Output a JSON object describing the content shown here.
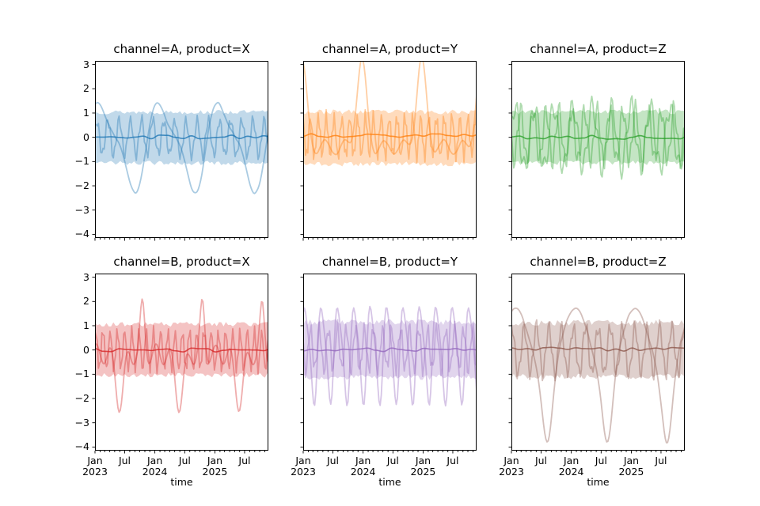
{
  "figure": {
    "kind": "faceted-line-chart",
    "background": "#ffffff"
  },
  "chart_data": {
    "type": "line",
    "facet_grid": {
      "rows": 2,
      "cols": 3,
      "row_variable": "channel",
      "col_variable": "product"
    },
    "axes": {
      "xlabel": "time",
      "x_span_days": 1057,
      "x_start": "Jan 2023",
      "x_major_ticks": [
        {
          "day": 0,
          "line1": "Jan",
          "line2": "2023"
        },
        {
          "day": 181,
          "line1": "Jul",
          "line2": ""
        },
        {
          "day": 365,
          "line1": "Jan",
          "line2": "2024"
        },
        {
          "day": 547,
          "line1": "Jul",
          "line2": ""
        },
        {
          "day": 731,
          "line1": "Jan",
          "line2": "2025"
        },
        {
          "day": 912,
          "line1": "Jul",
          "line2": ""
        }
      ],
      "x_minor_ticks_days": [
        31,
        59,
        90,
        120,
        151,
        212,
        243,
        273,
        304,
        334,
        396,
        425,
        456,
        486,
        517,
        578,
        609,
        639,
        670,
        700,
        762,
        790,
        821,
        851,
        882,
        943,
        974,
        1004,
        1035
      ],
      "ylim": [
        -4.15,
        3.15
      ],
      "y_ticks": [
        {
          "v": 3,
          "label": "3"
        },
        {
          "v": 2,
          "label": "2"
        },
        {
          "v": 1,
          "label": "1"
        },
        {
          "v": 0,
          "label": "0"
        },
        {
          "v": -1,
          "label": "−1"
        },
        {
          "v": -2,
          "label": "−2"
        },
        {
          "v": -3,
          "label": "−3"
        },
        {
          "v": -4,
          "label": "−4"
        }
      ],
      "grid": false,
      "legend": "none",
      "sample_step_days": 7,
      "n_samples": 152
    },
    "style": {
      "band_opacity": 0.28,
      "line_opacity": 0.38,
      "mean_opacity": 0.8,
      "line_width": 1.8,
      "spine_color": "#000000",
      "tick_color": "#000000"
    },
    "panels": [
      {
        "title": "channel=A, product=X",
        "color": "#1f77b4",
        "band": {
          "hi": 1.04,
          "lo": -1.06,
          "noise": 0.09,
          "seed": 13
        },
        "mean": {
          "offset": 0.02,
          "noise": 0.08,
          "seed": 14
        },
        "lines": [
          {
            "offset": -0.3,
            "harmonics": [
              [
                365,
                1.65,
                0.8
              ],
              [
                182.5,
                0.5,
                2.0
              ]
            ],
            "pulses": [],
            "noise": 0.05,
            "seed": 11
          },
          {
            "offset": 0.0,
            "harmonics": [
              [
                68,
                0.72,
                0.5
              ],
              [
                24,
                0.22,
                1.7
              ]
            ],
            "pulses": [],
            "noise": 0.08,
            "seed": 12
          }
        ]
      },
      {
        "title": "channel=A, product=Y",
        "color": "#ff7f0e",
        "band": {
          "hi": 1.05,
          "lo": -1.1,
          "noise": 0.1,
          "seed": 23
        },
        "mean": {
          "offset": 0.07,
          "noise": 0.08,
          "seed": 24
        },
        "lines": [
          {
            "offset": -0.42,
            "harmonics": [
              [
                120,
                0.3,
                0.8
              ]
            ],
            "pulses": [
              [
                365,
                30,
                3.5,
                355
              ]
            ],
            "noise": 0.05,
            "seed": 21
          },
          {
            "offset": 0.05,
            "harmonics": [
              [
                48,
                0.8,
                2.1
              ],
              [
                17,
                0.28,
                0.3
              ]
            ],
            "pulses": [],
            "noise": 0.07,
            "seed": 22
          }
        ]
      },
      {
        "title": "channel=A, product=Z",
        "color": "#2ca02c",
        "band": {
          "hi": 1.05,
          "lo": -1.05,
          "noise": 0.1,
          "seed": 33
        },
        "mean": {
          "offset": 0.0,
          "noise": 0.08,
          "seed": 34
        },
        "lines": [
          {
            "offset": 0.0,
            "harmonics": [
              [
                118,
                1.25,
                0.4
              ],
              [
                41,
                0.45,
                2.2
              ]
            ],
            "pulses": [],
            "noise": 0.06,
            "seed": 31
          },
          {
            "offset": 0.08,
            "harmonics": [
              [
                78,
                1.05,
                3.4
              ],
              [
                29,
                0.4,
                1.1
              ]
            ],
            "pulses": [],
            "noise": 0.06,
            "seed": 32
          }
        ]
      },
      {
        "title": "channel=B, product=X",
        "color": "#d62728",
        "band": {
          "hi": 1.06,
          "lo": -1.04,
          "noise": 0.1,
          "seed": 43
        },
        "mean": {
          "offset": 0.0,
          "noise": 0.08,
          "seed": 44
        },
        "lines": [
          {
            "offset": -0.18,
            "harmonics": [
              [
                91,
                0.4,
                1.0
              ]
            ],
            "pulses": [
              [
                365,
                14,
                1.95,
                290
              ],
              [
                365,
                24,
                -2.0,
                150
              ]
            ],
            "noise": 0.05,
            "seed": 41
          },
          {
            "offset": 0.0,
            "harmonics": [
              [
                44,
                0.78,
                0.9
              ],
              [
                15,
                0.22,
                2.5
              ]
            ],
            "pulses": [],
            "noise": 0.07,
            "seed": 42
          }
        ]
      },
      {
        "title": "channel=B, product=Y",
        "color": "#9467bd",
        "band": {
          "hi": 1.15,
          "lo": -1.12,
          "noise": 0.12,
          "seed": 53
        },
        "mean": {
          "offset": 0.0,
          "noise": 0.08,
          "seed": 54
        },
        "lines": [
          {
            "offset": -0.1,
            "harmonics": [
              [
                100,
                1.9,
                0.7
              ],
              [
                50,
                0.4,
                1.9
              ]
            ],
            "pulses": [],
            "noise": 0.05,
            "seed": 51
          },
          {
            "offset": 0.05,
            "harmonics": [
              [
                55,
                0.85,
                2.9
              ],
              [
                23,
                0.3,
                0.6
              ]
            ],
            "pulses": [],
            "noise": 0.07,
            "seed": 52
          }
        ]
      },
      {
        "title": "channel=B, product=Z",
        "color": "#8c564b",
        "band": {
          "hi": 1.12,
          "lo": -1.1,
          "noise": 0.12,
          "seed": 63
        },
        "mean": {
          "offset": 0.03,
          "noise": 0.08,
          "seed": 64
        },
        "lines": [
          {
            "offset": 0.3,
            "harmonics": [
              [
                365,
                1.4,
                1.15
              ]
            ],
            "pulses": [
              [
                365,
                30,
                -2.75,
                220
              ]
            ],
            "noise": 0.05,
            "seed": 61
          },
          {
            "offset": 0.0,
            "harmonics": [
              [
                75,
                0.95,
                1.3
              ],
              [
                26,
                0.3,
                2.8
              ]
            ],
            "pulses": [],
            "noise": 0.08,
            "seed": 62
          }
        ]
      }
    ]
  }
}
